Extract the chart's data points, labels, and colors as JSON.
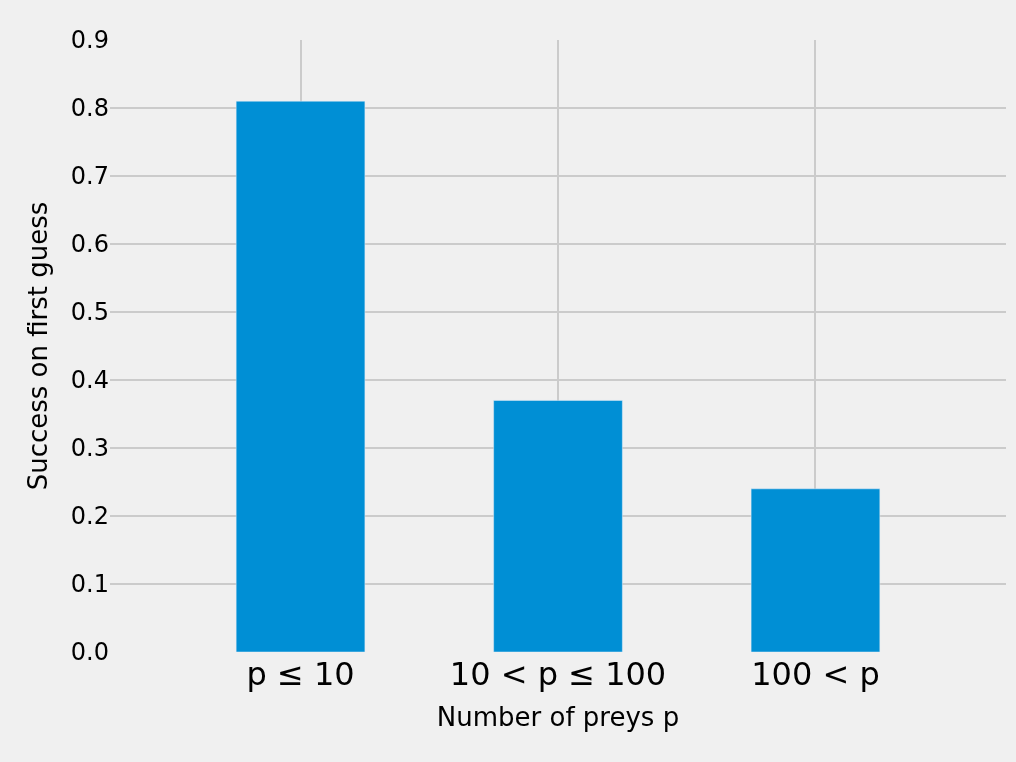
{
  "chart_data": {
    "type": "bar",
    "categories": [
      "p ≤ 10",
      "10 < p ≤ 100",
      "100 < p"
    ],
    "values": [
      0.81,
      0.37,
      0.24
    ],
    "color": "#008fd5",
    "xlabel": "Number of preys p",
    "ylabel": "Success on first guess",
    "ylim": [
      0,
      0.9
    ],
    "yticks": [
      {
        "value": 0,
        "label": "0.0"
      },
      0.1,
      0.2,
      0.3,
      0.4,
      0.5,
      0.6,
      0.7,
      0.8,
      0.9
    ],
    "grid": true
  }
}
